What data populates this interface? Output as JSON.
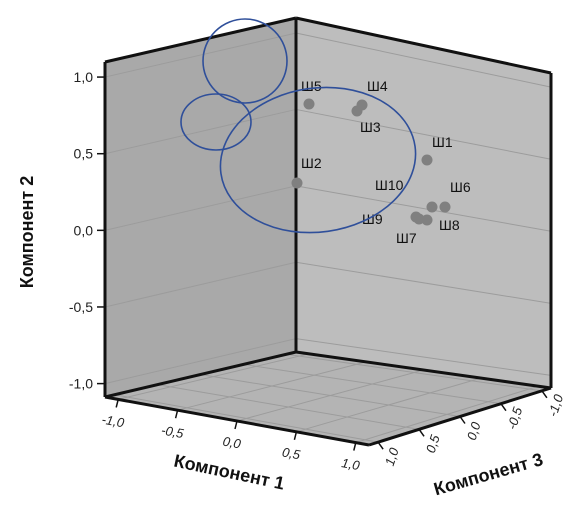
{
  "chart_data": {
    "type": "scatter",
    "projection": "3d",
    "xlabel": "Компонент 1",
    "ylabel": "Компонент 2",
    "zlabel": "Компонент 3",
    "ylim": [
      -1.0,
      1.0
    ],
    "x_ticks": [
      "-1,0",
      "-0,5",
      "0,0",
      "0,5",
      "1,0"
    ],
    "y_ticks": [
      "1,0",
      "0,5",
      "0,0",
      "-0,5",
      "-1,0"
    ],
    "z_ticks": [
      "1,0",
      "0,5",
      "0,0",
      "-0,5",
      "-1,0"
    ],
    "grid": true,
    "marker_color": "#808080",
    "annotation_color": "#2f4f9a",
    "points": [
      {
        "label": "Ш5",
        "y": 0.85
      },
      {
        "label": "Ш4",
        "y": 0.86
      },
      {
        "label": "Ш3",
        "y": 0.82
      },
      {
        "label": "Ш1",
        "y": 0.47
      },
      {
        "label": "Ш2",
        "y": 0.31
      },
      {
        "label": "Ш10",
        "y": 0.12
      },
      {
        "label": "Ш6",
        "y": 0.12
      },
      {
        "label": "Ш9",
        "y": 0.06
      },
      {
        "label": "Ш8",
        "y": 0.04
      },
      {
        "label": "Ш7",
        "y": 0.05
      }
    ],
    "annotations": [
      {
        "shape": "ellipse",
        "note": "top"
      },
      {
        "shape": "ellipse",
        "note": "small-left"
      },
      {
        "shape": "ellipse",
        "note": "large"
      }
    ]
  }
}
